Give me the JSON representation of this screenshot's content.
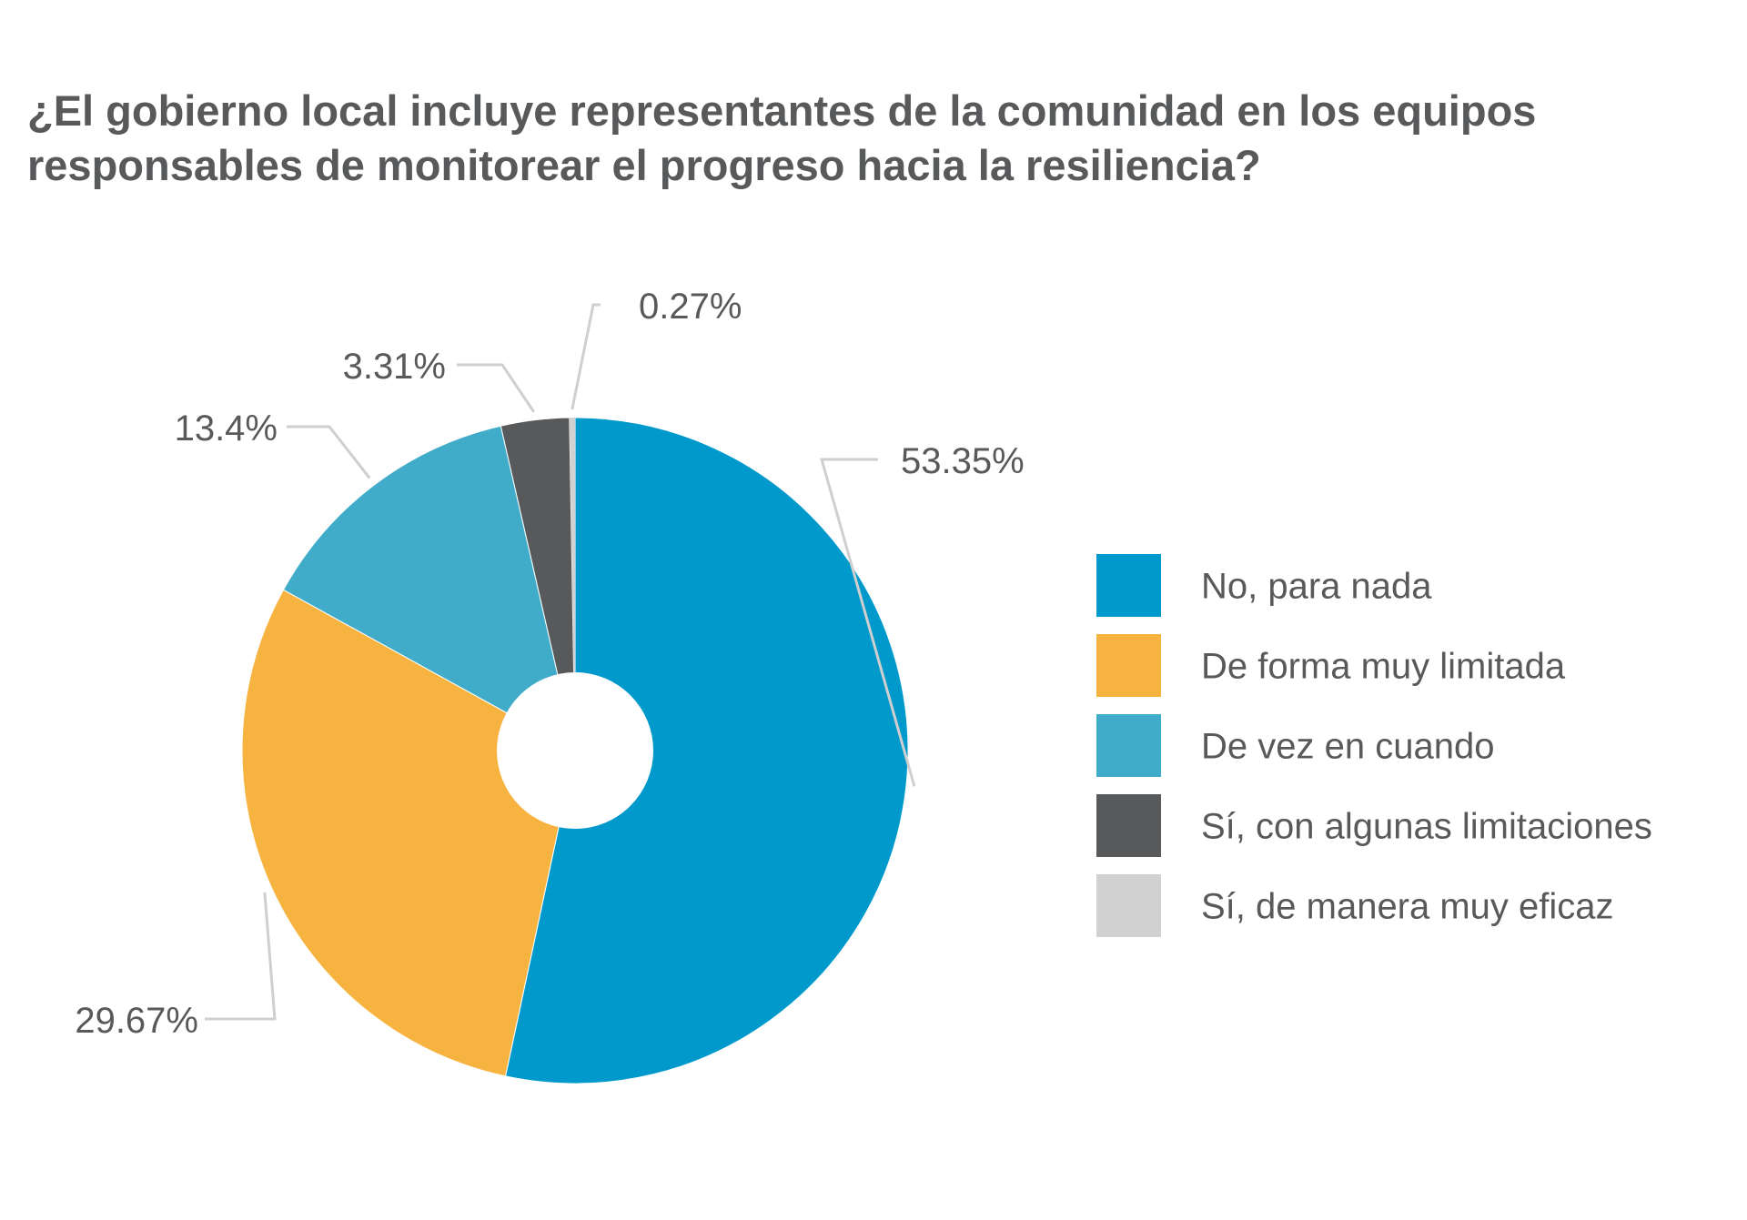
{
  "chart_data": {
    "type": "pie",
    "title_lines": [
      "¿El gobierno local incluye representantes de la comunidad en los equipos",
      "responsables de monitorear el progreso hacia la resiliencia?"
    ],
    "categories": [
      "No, para nada",
      "De forma muy limitada",
      "De vez en cuando",
      "Sí, con algunas limitaciones",
      "Sí, de manera muy eficaz"
    ],
    "values": [
      53.35,
      29.67,
      13.4,
      3.31,
      0.27
    ],
    "value_labels": [
      "53.35%",
      "29.67%",
      "13.4%",
      "3.31%",
      "0.27%"
    ],
    "colors": [
      "#0099cc",
      "#f7b340",
      "#41acc9",
      "#58595b",
      "#d1d1d1"
    ],
    "donut_hole": true,
    "legend_position": "right"
  }
}
